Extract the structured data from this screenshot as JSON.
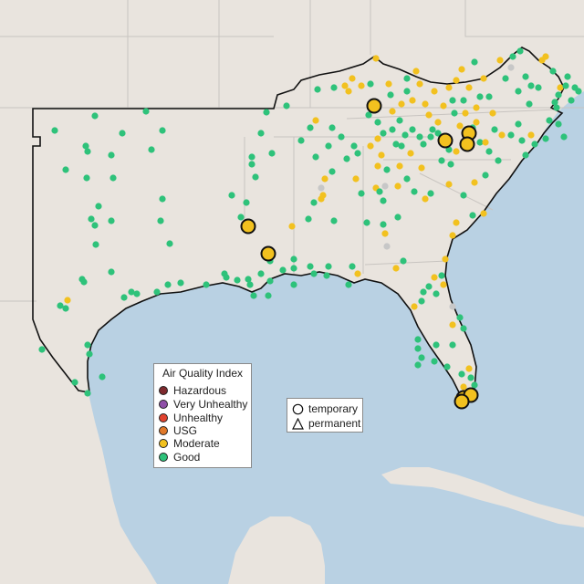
{
  "legend": {
    "title": "Air Quality Index",
    "categories": [
      {
        "label": "Hazardous",
        "color": "#7e2a2e"
      },
      {
        "label": "Very Unhealthy",
        "color": "#8f4fa8"
      },
      {
        "label": "Unhealthy",
        "color": "#e2432f"
      },
      {
        "label": "USG",
        "color": "#e0792a"
      },
      {
        "label": "Moderate",
        "color": "#f2c11f"
      },
      {
        "label": "Good",
        "color": "#2ec27a"
      }
    ]
  },
  "shape_legend": {
    "items": [
      {
        "label": "temporary",
        "icon": "circle-icon"
      },
      {
        "label": "permanent",
        "icon": "triangle-icon"
      }
    ]
  },
  "colors": {
    "land": "#e9e4de",
    "water": "#b9d1e3",
    "state_border": "#c8c4c0",
    "region_outline": "#111111",
    "monitor_no_data": "#c7c7c7"
  },
  "map": {
    "region": "Southeastern United States air quality monitors"
  }
}
